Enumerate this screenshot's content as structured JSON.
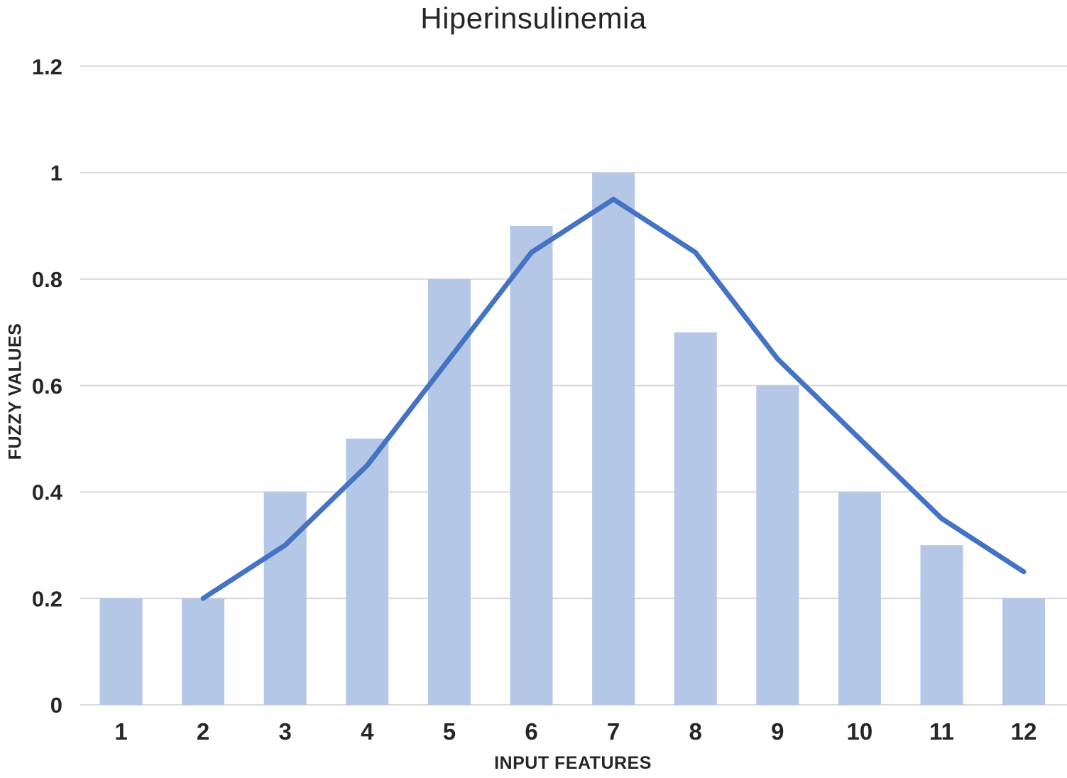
{
  "chart_data": {
    "type": "bar",
    "title": "Hiperinsulinemia",
    "xlabel": "INPUT FEATURES",
    "ylabel": "FUZZY VALUES",
    "categories": [
      "1",
      "2",
      "3",
      "4",
      "5",
      "6",
      "7",
      "8",
      "9",
      "10",
      "11",
      "12"
    ],
    "y_ticks": [
      "0",
      "0.2",
      "0.4",
      "0.6",
      "0.8",
      "1",
      "1.2"
    ],
    "y_tick_values": [
      0,
      0.2,
      0.4,
      0.6,
      0.8,
      1,
      1.2
    ],
    "ylim": [
      0,
      1.2
    ],
    "grid": true,
    "legend": "none",
    "series": [
      {
        "name": "fuzzy-values-bars",
        "type": "bar",
        "color": "#b4c7e7",
        "values": [
          0.2,
          0.2,
          0.4,
          0.5,
          0.8,
          0.9,
          1.0,
          0.7,
          0.6,
          0.4,
          0.3,
          0.2
        ]
      },
      {
        "name": "fuzzy-values-line",
        "type": "line",
        "color": "#4472c4",
        "values": [
          null,
          0.2,
          0.3,
          0.45,
          0.65,
          0.85,
          0.95,
          0.85,
          0.65,
          0.5,
          0.35,
          0.25
        ]
      }
    ],
    "colors": {
      "gridline": "#d9d9d9",
      "axis_text": "#262626"
    }
  }
}
